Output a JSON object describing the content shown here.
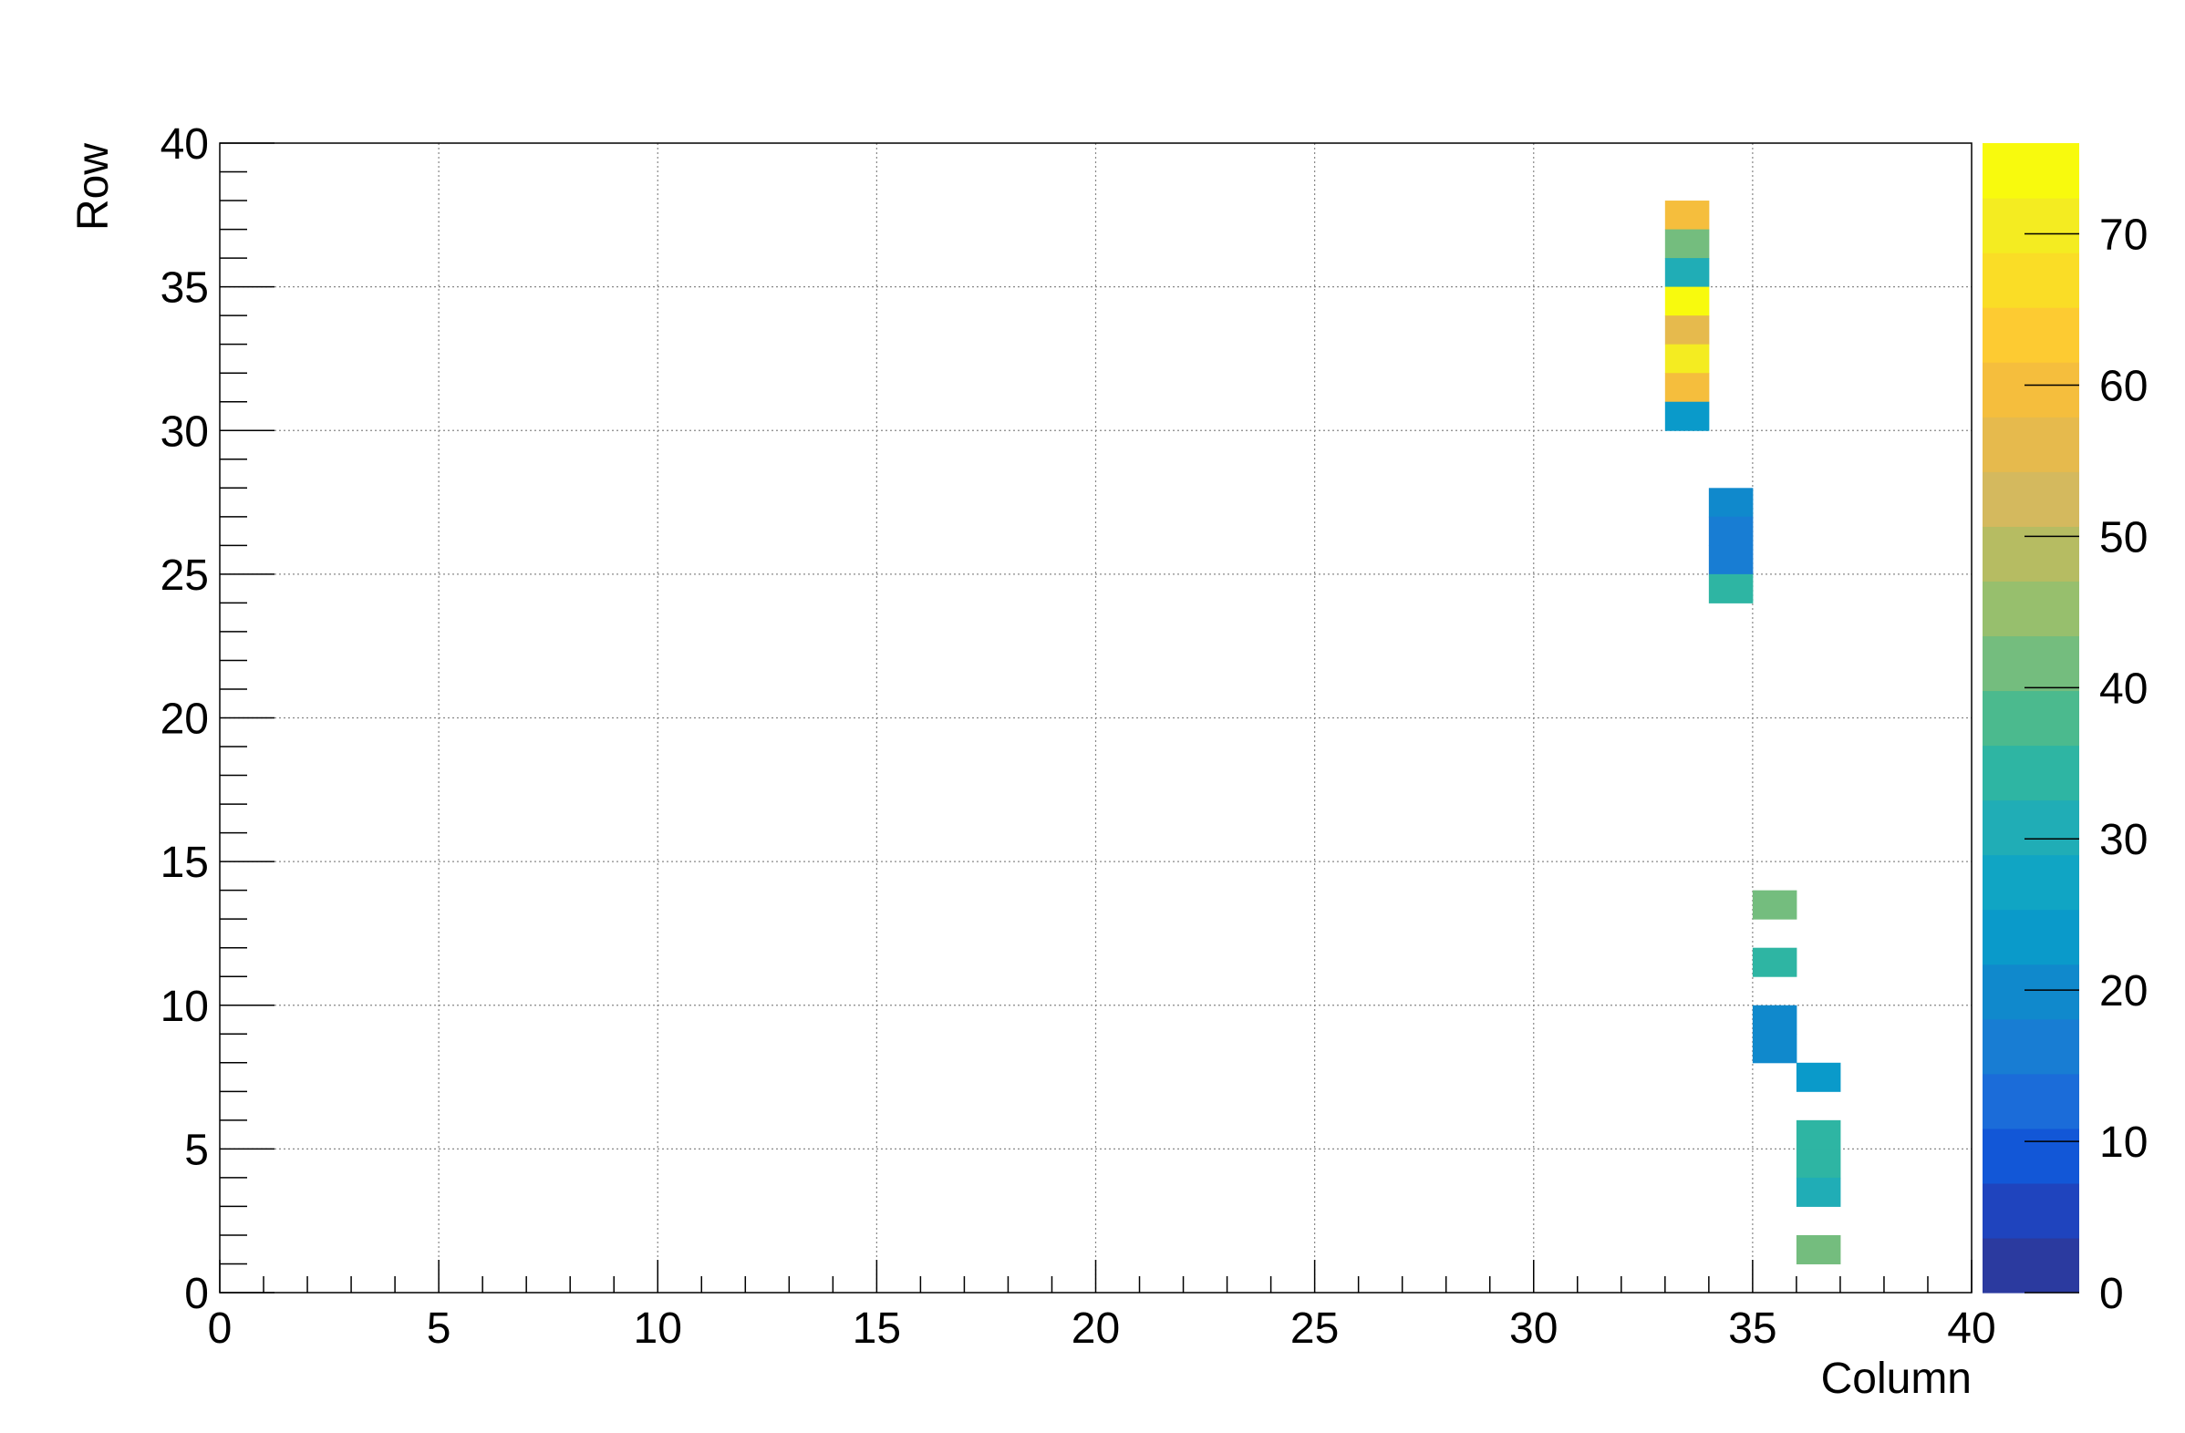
{
  "chart_data": {
    "type": "heatmap",
    "xlabel": "Column",
    "ylabel": "Row",
    "xlim": [
      0,
      40
    ],
    "ylim": [
      0,
      40
    ],
    "x_ticks": [
      "0",
      "5",
      "10",
      "15",
      "20",
      "25",
      "30",
      "35",
      "40"
    ],
    "y_ticks": [
      "0",
      "5",
      "10",
      "15",
      "20",
      "25",
      "30",
      "35",
      "40"
    ],
    "grid": true,
    "colorbar": {
      "range": [
        0,
        76
      ],
      "ticks": [
        "0",
        "10",
        "20",
        "30",
        "40",
        "50",
        "60",
        "70"
      ],
      "palette": [
        "#2B3A9F",
        "#1F44BE",
        "#1257D7",
        "#1B6CD9",
        "#187DD3",
        "#1089CC",
        "#0A9ACA",
        "#10A5C4",
        "#20ADB6",
        "#2EB5A3",
        "#4BBA8E",
        "#74BD7E",
        "#97BF6D",
        "#B6BC62",
        "#D4B95E",
        "#E6BA4D",
        "#F5BE3D",
        "#FDCB32",
        "#FADD26",
        "#F4EC21",
        "#F8FA0D"
      ]
    },
    "cells": [
      {
        "column": 33,
        "row": 37,
        "value": 60
      },
      {
        "column": 33,
        "row": 36,
        "value": 43
      },
      {
        "column": 33,
        "row": 35,
        "value": 32
      },
      {
        "column": 33,
        "row": 34,
        "value": 76
      },
      {
        "column": 33,
        "row": 33,
        "value": 57
      },
      {
        "column": 33,
        "row": 32,
        "value": 70
      },
      {
        "column": 33,
        "row": 31,
        "value": 60
      },
      {
        "column": 33,
        "row": 30,
        "value": 24
      },
      {
        "column": 34,
        "row": 27,
        "value": 20
      },
      {
        "column": 34,
        "row": 26,
        "value": 17
      },
      {
        "column": 34,
        "row": 25,
        "value": 17
      },
      {
        "column": 34,
        "row": 24,
        "value": 35
      },
      {
        "column": 35,
        "row": 13,
        "value": 40
      },
      {
        "column": 35,
        "row": 11,
        "value": 35
      },
      {
        "column": 35,
        "row": 9,
        "value": 20
      },
      {
        "column": 35,
        "row": 8,
        "value": 20
      },
      {
        "column": 36,
        "row": 7,
        "value": 25
      },
      {
        "column": 36,
        "row": 5,
        "value": 35
      },
      {
        "column": 36,
        "row": 4,
        "value": 35
      },
      {
        "column": 36,
        "row": 3,
        "value": 32
      },
      {
        "column": 36,
        "row": 1,
        "value": 40
      }
    ]
  }
}
